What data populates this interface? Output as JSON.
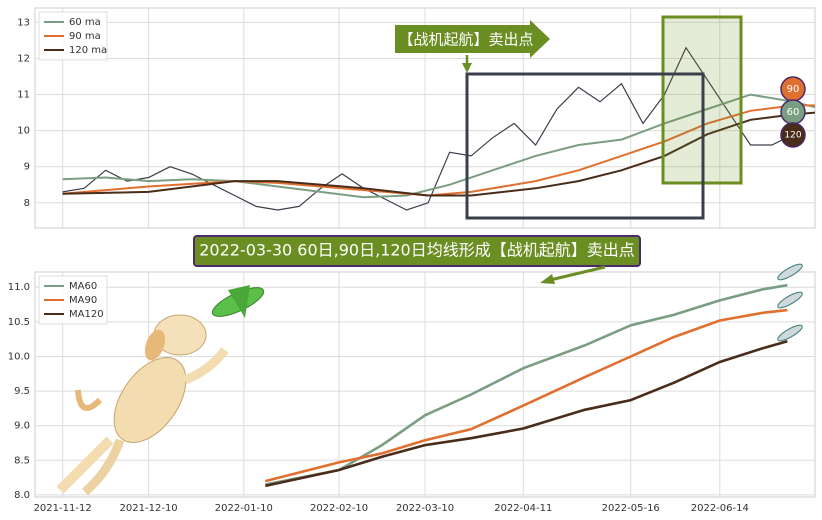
{
  "chart_data": [
    {
      "type": "line",
      "xlim": [
        "2021-11-03",
        "2022-07-15"
      ],
      "ylim": [
        7.3,
        13.4
      ],
      "yticks": [
        8,
        9,
        10,
        11,
        12,
        13
      ],
      "grid": true,
      "legend": "upper left",
      "series": [
        {
          "color": "#3a3f4b",
          "x": [
            "2021-11-12",
            "2021-11-19",
            "2021-11-26",
            "2021-12-03",
            "2021-12-10",
            "2021-12-17",
            "2021-12-24",
            "2021-12-31",
            "2022-01-07",
            "2022-01-14",
            "2022-01-21",
            "2022-01-28",
            "2022-02-04",
            "2022-02-11",
            "2022-02-18",
            "2022-02-25",
            "2022-03-04",
            "2022-03-11",
            "2022-03-18",
            "2022-03-25",
            "2022-04-01",
            "2022-04-08",
            "2022-04-15",
            "2022-04-22",
            "2022-04-29",
            "2022-05-06",
            "2022-05-13",
            "2022-05-20",
            "2022-05-27",
            "2022-06-03",
            "2022-06-10",
            "2022-06-17",
            "2022-06-24",
            "2022-07-01",
            "2022-07-08"
          ],
          "values": [
            8.3,
            8.4,
            8.9,
            8.6,
            8.7,
            9.0,
            8.8,
            8.5,
            8.2,
            7.9,
            7.8,
            7.9,
            8.4,
            8.8,
            8.4,
            8.1,
            7.8,
            8.0,
            9.4,
            9.3,
            9.8,
            10.2,
            9.6,
            10.6,
            11.2,
            10.8,
            11.3,
            10.2,
            11.0,
            12.3,
            11.4,
            10.5,
            9.6,
            9.6,
            9.9
          ]
        },
        {
          "name": "60 ma",
          "color": "#7a9e82",
          "x": [
            "2021-11-12",
            "2021-11-26",
            "2021-12-10",
            "2021-12-24",
            "2022-01-07",
            "2022-01-21",
            "2022-02-04",
            "2022-02-18",
            "2022-03-04",
            "2022-03-18",
            "2022-04-01",
            "2022-04-15",
            "2022-04-29",
            "2022-05-13",
            "2022-05-27",
            "2022-06-10",
            "2022-06-24",
            "2022-07-08",
            "2022-07-15"
          ],
          "values": [
            8.65,
            8.7,
            8.6,
            8.65,
            8.6,
            8.45,
            8.3,
            8.15,
            8.2,
            8.5,
            8.9,
            9.3,
            9.6,
            9.75,
            10.2,
            10.6,
            11.0,
            10.8,
            10.65
          ]
        },
        {
          "name": "90 ma",
          "color": "#e07030",
          "x": [
            "2021-11-12",
            "2021-12-10",
            "2022-01-07",
            "2022-01-21",
            "2022-02-18",
            "2022-03-11",
            "2022-03-25",
            "2022-04-15",
            "2022-04-29",
            "2022-05-13",
            "2022-05-27",
            "2022-06-10",
            "2022-06-24",
            "2022-07-08",
            "2022-07-15"
          ],
          "values": [
            8.25,
            8.45,
            8.6,
            8.55,
            8.35,
            8.2,
            8.3,
            8.6,
            8.9,
            9.3,
            9.7,
            10.2,
            10.55,
            10.7,
            10.7
          ]
        },
        {
          "name": "120 ma",
          "color": "#4a2c1a",
          "x": [
            "2021-11-12",
            "2021-12-10",
            "2022-01-07",
            "2022-01-21",
            "2022-02-18",
            "2022-03-11",
            "2022-03-25",
            "2022-04-15",
            "2022-04-29",
            "2022-05-13",
            "2022-05-27",
            "2022-06-10",
            "2022-06-24",
            "2022-07-08",
            "2022-07-15"
          ],
          "values": [
            8.25,
            8.3,
            8.6,
            8.6,
            8.4,
            8.2,
            8.2,
            8.4,
            8.6,
            8.9,
            9.3,
            9.9,
            10.3,
            10.45,
            10.5
          ]
        }
      ],
      "annotations": [
        "【战机起航】卖出点"
      ],
      "badges": [
        "90",
        "60",
        "120"
      ]
    },
    {
      "type": "line",
      "xlim": [
        "2021-11-03",
        "2022-07-15"
      ],
      "ylim": [
        7.97,
        11.22
      ],
      "xticks": [
        "2021-11-12",
        "2021-12-10",
        "2022-01-10",
        "2022-02-10",
        "2022-03-10",
        "2022-04-11",
        "2022-05-16",
        "2022-06-14"
      ],
      "yticks": [
        {
          "value": 8,
          "label": "8.0"
        },
        8.5,
        {
          "value": 9,
          "label": "9.0"
        },
        9.5,
        {
          "value": 10,
          "label": "10.0"
        },
        10.5,
        {
          "value": 11,
          "label": "11.0"
        }
      ],
      "grid": true,
      "legend": "upper left",
      "series": [
        {
          "name": "MA60",
          "color": "#7a9e82",
          "x": [
            "2022-01-17",
            "2022-02-10",
            "2022-02-24",
            "2022-03-10",
            "2022-03-25",
            "2022-04-11",
            "2022-05-01",
            "2022-05-16",
            "2022-05-30",
            "2022-06-14",
            "2022-06-28",
            "2022-07-06"
          ],
          "values": [
            8.15,
            8.36,
            8.72,
            9.15,
            9.45,
            9.83,
            10.16,
            10.45,
            10.6,
            10.81,
            10.97,
            11.03
          ]
        },
        {
          "name": "MA90",
          "color": "#e07030",
          "x": [
            "2022-01-17",
            "2022-02-10",
            "2022-02-24",
            "2022-03-10",
            "2022-03-25",
            "2022-04-11",
            "2022-05-01",
            "2022-05-16",
            "2022-05-30",
            "2022-06-14",
            "2022-06-28",
            "2022-07-06"
          ],
          "values": [
            8.2,
            8.47,
            8.6,
            8.79,
            8.95,
            9.29,
            9.7,
            10.0,
            10.28,
            10.52,
            10.63,
            10.67
          ]
        },
        {
          "name": "MA120",
          "color": "#4a2c1a",
          "x": [
            "2022-01-17",
            "2022-02-10",
            "2022-02-24",
            "2022-03-10",
            "2022-03-25",
            "2022-04-11",
            "2022-05-01",
            "2022-05-16",
            "2022-05-30",
            "2022-06-14",
            "2022-06-28",
            "2022-07-06"
          ],
          "values": [
            8.13,
            8.36,
            8.55,
            8.72,
            8.82,
            8.96,
            9.23,
            9.37,
            9.62,
            9.92,
            10.12,
            10.22
          ]
        }
      ],
      "annotations": [
        "2022-03-30 60日,90日,120日均线形成【战机起航】卖出点"
      ]
    }
  ]
}
